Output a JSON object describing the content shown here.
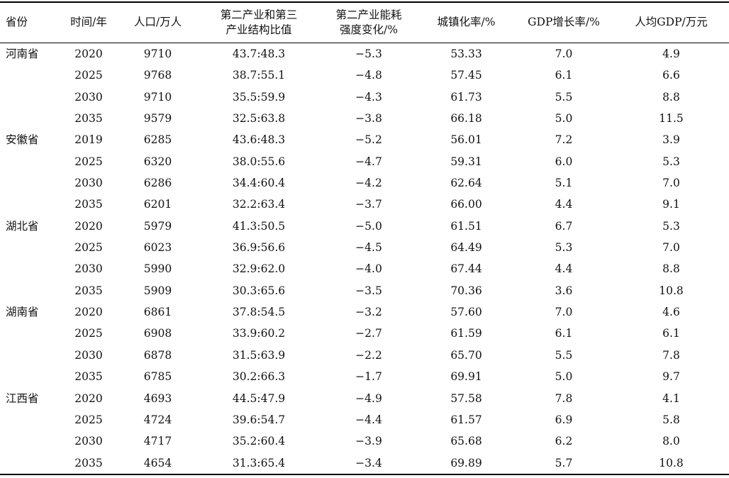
{
  "table": {
    "columns": [
      "省份",
      "时间/年",
      "人口/万人",
      "第二产业和第三\n产业结构比值",
      "第二产业能耗\n强度变化/%",
      "城镇化率/%",
      "GDP增长率/%",
      "人均GDP/万元"
    ],
    "rows": [
      [
        "河南省",
        "2020",
        "9710",
        "43.7:48.3",
        "−5.3",
        "53.33",
        "7.0",
        "4.9"
      ],
      [
        "",
        "2025",
        "9768",
        "38.7:55.1",
        "−4.8",
        "57.45",
        "6.1",
        "6.6"
      ],
      [
        "",
        "2030",
        "9710",
        "35.5:59.9",
        "−4.3",
        "61.73",
        "5.5",
        "8.8"
      ],
      [
        "",
        "2035",
        "9579",
        "32.5:63.8",
        "−3.8",
        "66.18",
        "5.0",
        "11.5"
      ],
      [
        "安徽省",
        "2019",
        "6285",
        "43.6:48.3",
        "−5.2",
        "56.01",
        "7.2",
        "3.9"
      ],
      [
        "",
        "2025",
        "6320",
        "38.0:55.6",
        "−4.7",
        "59.31",
        "6.0",
        "5.3"
      ],
      [
        "",
        "2030",
        "6286",
        "34.4:60.4",
        "−4.2",
        "62.64",
        "5.1",
        "7.0"
      ],
      [
        "",
        "2035",
        "6201",
        "32.2:63.4",
        "−3.7",
        "66.00",
        "4.4",
        "9.1"
      ],
      [
        "湖北省",
        "2020",
        "5979",
        "41.3:50.5",
        "−5.0",
        "61.51",
        "6.7",
        "5.3"
      ],
      [
        "",
        "2025",
        "6023",
        "36.9:56.6",
        "−4.5",
        "64.49",
        "5.3",
        "7.0"
      ],
      [
        "",
        "2030",
        "5990",
        "32.9:62.0",
        "−4.0",
        "67.44",
        "4.4",
        "8.8"
      ],
      [
        "",
        "2035",
        "5909",
        "30.3:65.6",
        "−3.5",
        "70.36",
        "3.6",
        "10.8"
      ],
      [
        "湖南省",
        "2020",
        "6861",
        "37.8:54.5",
        "−3.2",
        "57.60",
        "7.0",
        "4.6"
      ],
      [
        "",
        "2025",
        "6908",
        "33.9:60.2",
        "−2.7",
        "61.59",
        "6.1",
        "6.1"
      ],
      [
        "",
        "2030",
        "6878",
        "31.5:63.9",
        "−2.2",
        "65.70",
        "5.5",
        "7.8"
      ],
      [
        "",
        "2035",
        "6785",
        "30.2:66.3",
        "−1.7",
        "69.91",
        "5.0",
        "9.7"
      ],
      [
        "江西省",
        "2020",
        "4693",
        "44.5:47.9",
        "−4.9",
        "57.58",
        "7.8",
        "4.1"
      ],
      [
        "",
        "2025",
        "4724",
        "39.6:54.7",
        "−4.4",
        "61.57",
        "6.9",
        "5.8"
      ],
      [
        "",
        "2030",
        "4717",
        "35.2:60.4",
        "−3.9",
        "65.68",
        "6.2",
        "8.0"
      ],
      [
        "",
        "2035",
        "4654",
        "31.3:65.4",
        "−3.4",
        "69.89",
        "5.7",
        "10.8"
      ]
    ]
  }
}
